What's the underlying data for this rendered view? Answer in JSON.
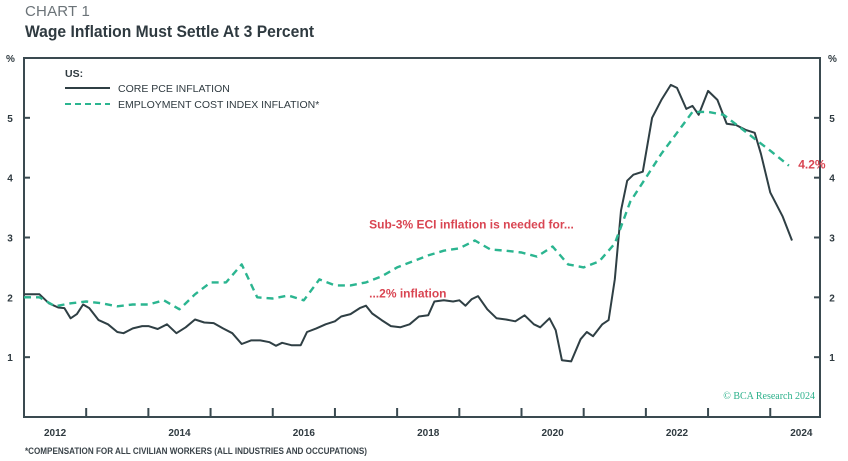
{
  "header": {
    "kicker": "CHART 1",
    "title": "Wage Inflation Must Settle At 3 Percent"
  },
  "footnote": "*COMPENSATION FOR ALL CIVILIAN WORKERS (ALL INDUSTRIES AND OCCUPATIONS)",
  "credit": "© BCA Research 2024",
  "colors": {
    "pce": "#2f3f44",
    "eci": "#2bb590",
    "annotation": "#d94552",
    "axis": "#3a4a50"
  },
  "chart_data": {
    "type": "line",
    "title": "Wage Inflation Must Settle At 3 Percent",
    "ylabel_left": "%",
    "ylabel_right": "%",
    "ylim": [
      0,
      6
    ],
    "xlim": [
      2012.0,
      2024.8
    ],
    "yticks": [
      1,
      2,
      3,
      4,
      5
    ],
    "xtick_labels": [
      {
        "label": "2012",
        "x": 2012.5
      },
      {
        "label": "2014",
        "x": 2014.5
      },
      {
        "label": "2016",
        "x": 2016.5
      },
      {
        "label": "2018",
        "x": 2018.5
      },
      {
        "label": "2020",
        "x": 2020.5
      },
      {
        "label": "2022",
        "x": 2022.5
      },
      {
        "label": "2024",
        "x": 2024.5
      }
    ],
    "xticks_minor": [
      2013,
      2014,
      2015,
      2016,
      2017,
      2018,
      2019,
      2020,
      2021,
      2022,
      2023,
      2024
    ],
    "grid": false,
    "legend": {
      "placement": "top-left",
      "heading": "US:",
      "entries": [
        "CORE PCE INFLATION",
        "EMPLOYMENT COST INDEX INFLATION*"
      ]
    },
    "series": [
      {
        "name": "CORE PCE INFLATION",
        "style": "solid",
        "points": [
          [
            2012.0,
            2.05
          ],
          [
            2012.1,
            2.05
          ],
          [
            2012.25,
            2.05
          ],
          [
            2012.4,
            1.9
          ],
          [
            2012.55,
            1.83
          ],
          [
            2012.65,
            1.82
          ],
          [
            2012.75,
            1.65
          ],
          [
            2012.85,
            1.72
          ],
          [
            2012.95,
            1.88
          ],
          [
            2013.05,
            1.82
          ],
          [
            2013.2,
            1.62
          ],
          [
            2013.35,
            1.55
          ],
          [
            2013.5,
            1.42
          ],
          [
            2013.6,
            1.4
          ],
          [
            2013.75,
            1.48
          ],
          [
            2013.9,
            1.52
          ],
          [
            2014.0,
            1.52
          ],
          [
            2014.15,
            1.47
          ],
          [
            2014.3,
            1.55
          ],
          [
            2014.45,
            1.4
          ],
          [
            2014.6,
            1.5
          ],
          [
            2014.75,
            1.63
          ],
          [
            2014.9,
            1.58
          ],
          [
            2015.05,
            1.57
          ],
          [
            2015.2,
            1.48
          ],
          [
            2015.35,
            1.4
          ],
          [
            2015.5,
            1.22
          ],
          [
            2015.65,
            1.28
          ],
          [
            2015.8,
            1.28
          ],
          [
            2015.95,
            1.25
          ],
          [
            2016.05,
            1.19
          ],
          [
            2016.15,
            1.24
          ],
          [
            2016.3,
            1.2
          ],
          [
            2016.45,
            1.2
          ],
          [
            2016.55,
            1.42
          ],
          [
            2016.7,
            1.48
          ],
          [
            2016.85,
            1.55
          ],
          [
            2017.0,
            1.6
          ],
          [
            2017.1,
            1.68
          ],
          [
            2017.25,
            1.72
          ],
          [
            2017.4,
            1.82
          ],
          [
            2017.5,
            1.86
          ],
          [
            2017.6,
            1.73
          ],
          [
            2017.75,
            1.62
          ],
          [
            2017.9,
            1.52
          ],
          [
            2018.05,
            1.5
          ],
          [
            2018.2,
            1.55
          ],
          [
            2018.35,
            1.68
          ],
          [
            2018.5,
            1.7
          ],
          [
            2018.6,
            1.93
          ],
          [
            2018.75,
            1.95
          ],
          [
            2018.9,
            1.93
          ],
          [
            2019.0,
            1.95
          ],
          [
            2019.1,
            1.86
          ],
          [
            2019.2,
            1.97
          ],
          [
            2019.3,
            2.02
          ],
          [
            2019.45,
            1.8
          ],
          [
            2019.6,
            1.65
          ],
          [
            2019.75,
            1.63
          ],
          [
            2019.9,
            1.6
          ],
          [
            2020.05,
            1.7
          ],
          [
            2020.2,
            1.55
          ],
          [
            2020.3,
            1.5
          ],
          [
            2020.45,
            1.65
          ],
          [
            2020.55,
            1.45
          ],
          [
            2020.65,
            0.95
          ],
          [
            2020.8,
            0.93
          ],
          [
            2020.95,
            1.3
          ],
          [
            2021.05,
            1.42
          ],
          [
            2021.15,
            1.35
          ],
          [
            2021.3,
            1.55
          ],
          [
            2021.4,
            1.62
          ],
          [
            2021.5,
            2.3
          ],
          [
            2021.6,
            3.45
          ],
          [
            2021.7,
            3.95
          ],
          [
            2021.8,
            4.05
          ],
          [
            2021.95,
            4.1
          ],
          [
            2022.1,
            5.0
          ],
          [
            2022.25,
            5.3
          ],
          [
            2022.4,
            5.55
          ],
          [
            2022.5,
            5.5
          ],
          [
            2022.65,
            5.15
          ],
          [
            2022.75,
            5.2
          ],
          [
            2022.85,
            5.05
          ],
          [
            2023.0,
            5.45
          ],
          [
            2023.15,
            5.3
          ],
          [
            2023.3,
            4.9
          ],
          [
            2023.45,
            4.88
          ],
          [
            2023.6,
            4.8
          ],
          [
            2023.75,
            4.75
          ],
          [
            2023.85,
            4.4
          ],
          [
            2024.0,
            3.75
          ],
          [
            2024.2,
            3.35
          ],
          [
            2024.35,
            2.95
          ]
        ]
      },
      {
        "name": "EMPLOYMENT COST INDEX INFLATION*",
        "style": "dashed",
        "points": [
          [
            2012.0,
            2.0
          ],
          [
            2012.25,
            2.0
          ],
          [
            2012.5,
            1.85
          ],
          [
            2012.75,
            1.9
          ],
          [
            2013.0,
            1.93
          ],
          [
            2013.25,
            1.9
          ],
          [
            2013.5,
            1.85
          ],
          [
            2013.75,
            1.88
          ],
          [
            2014.0,
            1.88
          ],
          [
            2014.25,
            1.95
          ],
          [
            2014.5,
            1.8
          ],
          [
            2014.75,
            2.05
          ],
          [
            2015.0,
            2.25
          ],
          [
            2015.25,
            2.25
          ],
          [
            2015.5,
            2.55
          ],
          [
            2015.75,
            2.0
          ],
          [
            2016.0,
            1.98
          ],
          [
            2016.25,
            2.03
          ],
          [
            2016.5,
            1.95
          ],
          [
            2016.75,
            2.3
          ],
          [
            2017.0,
            2.2
          ],
          [
            2017.25,
            2.2
          ],
          [
            2017.5,
            2.25
          ],
          [
            2017.75,
            2.35
          ],
          [
            2018.0,
            2.5
          ],
          [
            2018.25,
            2.6
          ],
          [
            2018.5,
            2.7
          ],
          [
            2018.75,
            2.78
          ],
          [
            2019.0,
            2.82
          ],
          [
            2019.25,
            2.95
          ],
          [
            2019.5,
            2.8
          ],
          [
            2019.75,
            2.78
          ],
          [
            2020.0,
            2.75
          ],
          [
            2020.25,
            2.68
          ],
          [
            2020.5,
            2.85
          ],
          [
            2020.75,
            2.55
          ],
          [
            2021.0,
            2.5
          ],
          [
            2021.25,
            2.6
          ],
          [
            2021.5,
            2.9
          ],
          [
            2021.75,
            3.6
          ],
          [
            2022.0,
            4.0
          ],
          [
            2022.25,
            4.4
          ],
          [
            2022.5,
            4.75
          ],
          [
            2022.75,
            5.1
          ],
          [
            2023.0,
            5.1
          ],
          [
            2023.25,
            5.05
          ],
          [
            2023.5,
            4.85
          ],
          [
            2023.75,
            4.65
          ],
          [
            2024.0,
            4.45
          ],
          [
            2024.3,
            4.2
          ]
        ]
      }
    ],
    "annotations": [
      {
        "text": "Sub-3% ECI inflation is needed for...",
        "x": 2017.55,
        "y": 3.15
      },
      {
        "text": "...2% inflation",
        "x": 2017.55,
        "y": 2.0
      },
      {
        "text": "4.2%",
        "x": 2024.45,
        "y": 4.15
      }
    ]
  }
}
